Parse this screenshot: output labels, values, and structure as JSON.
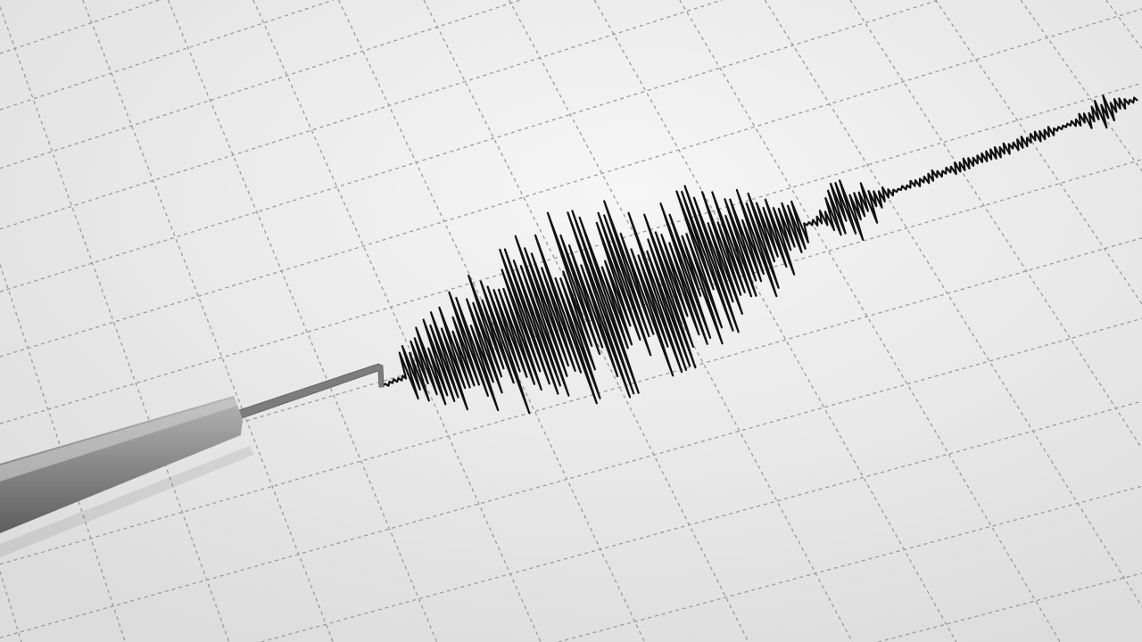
{
  "scene": {
    "subject": "seismograph-trace",
    "colors": {
      "paper": "#efefef",
      "grid": "#9a9a9a",
      "trace": "#111111",
      "stylus": "#8e8e8e",
      "needle": "#7a7a7a"
    }
  }
}
